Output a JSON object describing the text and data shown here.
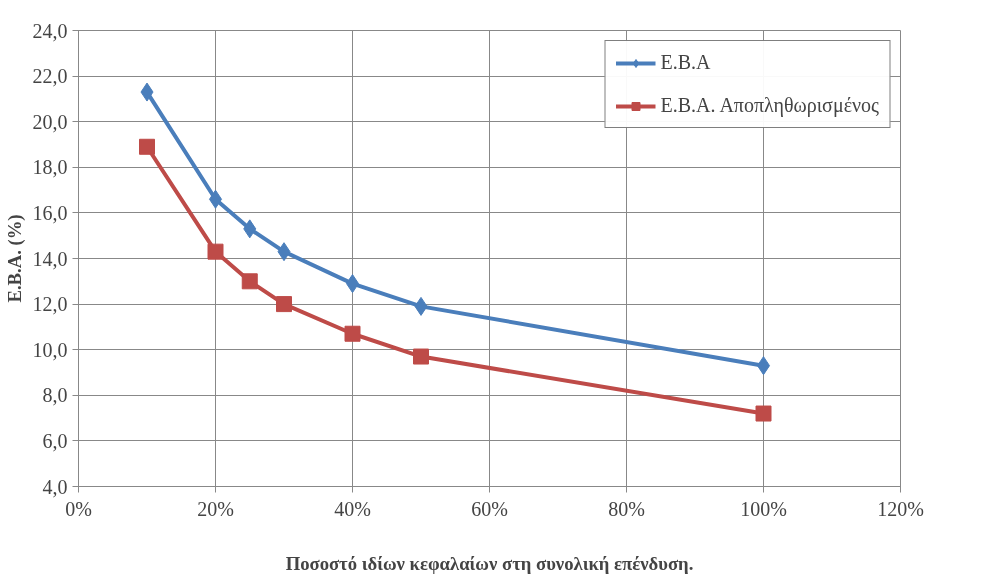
{
  "chart_data": {
    "type": "line",
    "xlabel": "Ποσοστό ιδίων κεφαλαίων στη συνολική επένδυση.",
    "ylabel": "Ε.Β.Α. (%)",
    "x": [
      10,
      20,
      25,
      30,
      40,
      50,
      100
    ],
    "series": [
      {
        "name": "Ε.Β.Α",
        "color": "#4a7ebb",
        "marker": "diamond",
        "values": [
          21.3,
          16.6,
          15.3,
          14.3,
          12.9,
          11.9,
          9.3
        ]
      },
      {
        "name": "Ε.Β.Α. Αποπληθωρισμένος",
        "color": "#be4b48",
        "marker": "square",
        "values": [
          18.9,
          14.3,
          13.0,
          12.0,
          10.7,
          9.7,
          7.2
        ]
      }
    ],
    "xlim": [
      0,
      120
    ],
    "xticks": [
      {
        "value": 0,
        "label": "0%"
      },
      {
        "value": 20,
        "label": "20%"
      },
      {
        "value": 40,
        "label": "40%"
      },
      {
        "value": 60,
        "label": "60%"
      },
      {
        "value": 80,
        "label": "80%"
      },
      {
        "value": 100,
        "label": "100%"
      },
      {
        "value": 120,
        "label": "120%"
      }
    ],
    "ylim": [
      4,
      24
    ],
    "yticks": [
      {
        "value": 4,
        "label": "4,0"
      },
      {
        "value": 6,
        "label": "6,0"
      },
      {
        "value": 8,
        "label": "8,0"
      },
      {
        "value": 10,
        "label": "10,0"
      },
      {
        "value": 12,
        "label": "12,0"
      },
      {
        "value": 14,
        "label": "14,0"
      },
      {
        "value": 16,
        "label": "16,0"
      },
      {
        "value": 18,
        "label": "18,0"
      },
      {
        "value": 20,
        "label": "20,0"
      },
      {
        "value": 22,
        "label": "22,0"
      },
      {
        "value": 24,
        "label": "24,0"
      }
    ],
    "grid": true,
    "legend": "top right",
    "line_style": "solid"
  }
}
